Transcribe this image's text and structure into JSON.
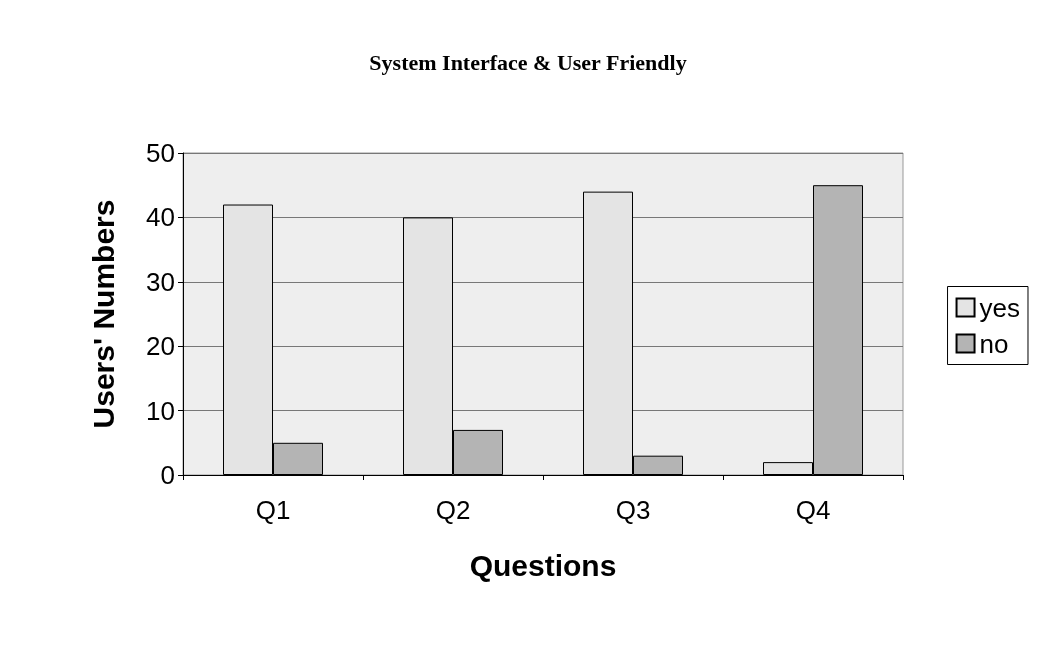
{
  "chart_data": {
    "type": "bar",
    "title": "System Interface & User Friendly",
    "xlabel": "Questions",
    "ylabel": "Users' Numbers",
    "categories": [
      "Q1",
      "Q2",
      "Q3",
      "Q4"
    ],
    "series": [
      {
        "name": "yes",
        "color": "#e4e4e4",
        "values": [
          42,
          40,
          44,
          2
        ]
      },
      {
        "name": "no",
        "color": "#b4b4b4",
        "values": [
          5,
          7,
          3,
          45
        ]
      }
    ],
    "ylim": [
      0,
      50
    ],
    "yticks": [
      0,
      10,
      20,
      30,
      40,
      50
    ],
    "grid": "y",
    "legend": "right"
  }
}
